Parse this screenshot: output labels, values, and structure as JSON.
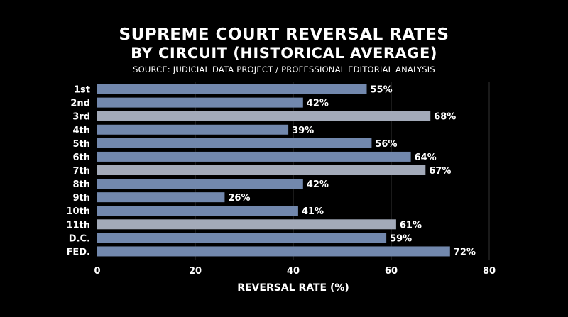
{
  "chart_data": {
    "type": "bar",
    "orientation": "horizontal",
    "title": "SUPREME COURT REVERSAL RATES",
    "subtitle": "BY CIRCUIT (HISTORICAL AVERAGE)",
    "source": "SOURCE: JUDICIAL DATA PROJECT / PROFESSIONAL EDITORIAL ANALYSIS",
    "categories": [
      "1st",
      "2nd",
      "3rd",
      "4th",
      "5th",
      "6th",
      "7th",
      "8th",
      "9th",
      "10th",
      "11th",
      "D.C.",
      "FED."
    ],
    "values": [
      55,
      42,
      68,
      39,
      56,
      64,
      67,
      42,
      26,
      41,
      61,
      59,
      72
    ],
    "value_labels": [
      "55%",
      "42%",
      "68%",
      "39%",
      "56%",
      "64%",
      "67%",
      "42%",
      "26%",
      "41%",
      "61%",
      "59%",
      "72%"
    ],
    "xlabel": "REVERSAL RATE (%)",
    "ylabel": "",
    "xlim": [
      0,
      80
    ],
    "xticks": [
      "0",
      "20",
      "40",
      "60",
      "80"
    ],
    "grid": true,
    "legend": "none",
    "colors": {
      "background": "#000000",
      "bar_blue": "#7288ad",
      "bar_gray": "#a3aab9",
      "grid": "#333333",
      "text": "#ffffff"
    },
    "bar_colors": [
      "blue",
      "blue",
      "gray",
      "blue",
      "blue",
      "blue",
      "gray",
      "blue",
      "blue",
      "blue",
      "gray",
      "blue",
      "blue"
    ]
  }
}
